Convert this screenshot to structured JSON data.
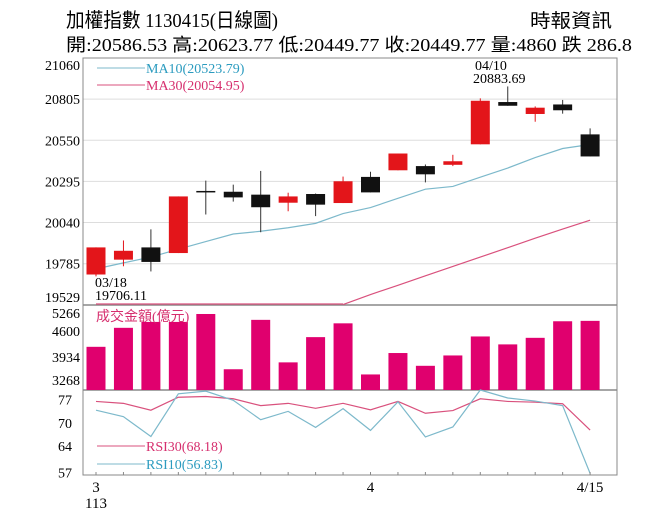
{
  "header": {
    "title": "加權指數 1130415(日線圖)",
    "source": "時報資訊",
    "summary": "開:20586.53 高:20623.77 低:20449.77 收:20449.77 量:4860 跌 286.8"
  },
  "colors": {
    "up": "#e3151a",
    "down": "#111111",
    "ma10": "#7db9cb",
    "ma30": "#d9517d",
    "ma10_text": "#2b9bbf",
    "ma30_text": "#d62f6e",
    "volume": "#e0006e",
    "grid": "#dddddd",
    "frame": "#888888"
  },
  "chart_data": [
    {
      "type": "candlestick",
      "title": "加權指數 1130415(日線圖)",
      "y_ticks": [
        21060,
        20805,
        20550,
        20295,
        20040,
        19785,
        19529
      ],
      "ylim": [
        19529,
        21060
      ],
      "grid": true,
      "ohlc": [
        [
          19718,
          19886,
          19706.11,
          19886
        ],
        [
          19810,
          19929,
          19769,
          19865
        ],
        [
          19886,
          19998,
          19737,
          19796
        ],
        [
          19851,
          20202,
          19851,
          20202
        ],
        [
          20236,
          20300,
          20090,
          20232
        ],
        [
          20231,
          20275,
          20170,
          20196
        ],
        [
          20213,
          20360,
          19980,
          20135
        ],
        [
          20163,
          20225,
          20110,
          20202
        ],
        [
          20217,
          20220,
          20080,
          20151
        ],
        [
          20161,
          20325,
          20161,
          20296
        ],
        [
          20323,
          20355,
          20227,
          20227
        ],
        [
          20364,
          20468,
          20364,
          20468
        ],
        [
          20390,
          20400,
          20289,
          20339
        ],
        [
          20398,
          20460,
          20390,
          20420
        ],
        [
          20525,
          20810,
          20525,
          20795
        ],
        [
          20787,
          20883.69,
          20764,
          20764
        ],
        [
          20713,
          20760,
          20665,
          20752
        ],
        [
          20772,
          20800,
          20715,
          20736
        ],
        [
          20586.53,
          20623.77,
          20449.77,
          20449.77
        ]
      ],
      "ohlc_order": [
        "open",
        "high",
        "low",
        "close"
      ],
      "series": [
        {
          "name": "MA10",
          "legend": "MA10(20523.79)",
          "values": [
            19753,
            19790,
            19826,
            19875,
            19922,
            19969,
            19986,
            20008,
            20035,
            20096,
            20133,
            20190,
            20247,
            20264,
            20321,
            20378,
            20443,
            20499,
            20523.79
          ]
        },
        {
          "name": "MA30",
          "legend": "MA30(20054.95)",
          "values": [
            null,
            null,
            null,
            null,
            null,
            null,
            null,
            null,
            null,
            19532,
            19594,
            19651,
            19710,
            19768,
            19826,
            19884,
            19943,
            20000,
            20054.95
          ]
        }
      ],
      "annotations": [
        {
          "day": 16,
          "date": "04/10",
          "value": "20883.69",
          "position": "above"
        },
        {
          "day": 1,
          "date": "03/18",
          "value": "19706.11",
          "position": "below"
        }
      ]
    },
    {
      "type": "bar",
      "title": "成交金額(億元)",
      "y_ticks": [
        5266,
        4600,
        3934,
        3268
      ],
      "ylim": [
        3091,
        5266
      ],
      "values": [
        4196,
        4682,
        4833,
        4833,
        5036,
        3622,
        4886,
        3798,
        4444,
        4797,
        3489,
        4037,
        3710,
        3975,
        4461,
        4258,
        4426,
        4850,
        4860
      ]
    },
    {
      "type": "line",
      "y_ticks": [
        77,
        70,
        64,
        57
      ],
      "ylim": [
        56.4,
        78.7
      ],
      "series": [
        {
          "name": "RSI30",
          "legend": "RSI30(68.18)",
          "values": [
            75.7,
            75.2,
            73.4,
            76.8,
            77.0,
            76.4,
            74.6,
            75.2,
            73.9,
            75.2,
            73.5,
            75.7,
            72.6,
            73.3,
            76.4,
            75.7,
            75.5,
            75.1,
            68.18
          ]
        },
        {
          "name": "RSI10",
          "legend": "RSI10(56.83)",
          "values": [
            73.4,
            71.7,
            66.5,
            77.7,
            78.4,
            76.0,
            70.9,
            73.1,
            68.9,
            73.8,
            68.1,
            75.6,
            66.4,
            69.0,
            78.7,
            76.6,
            75.8,
            74.6,
            56.83
          ]
        }
      ]
    }
  ],
  "x_axis": {
    "labels": [
      {
        "day": 1,
        "text": "3",
        "sub": "113"
      },
      {
        "day": 11,
        "text": "4"
      },
      {
        "day": 19,
        "text": "4/15"
      }
    ]
  }
}
